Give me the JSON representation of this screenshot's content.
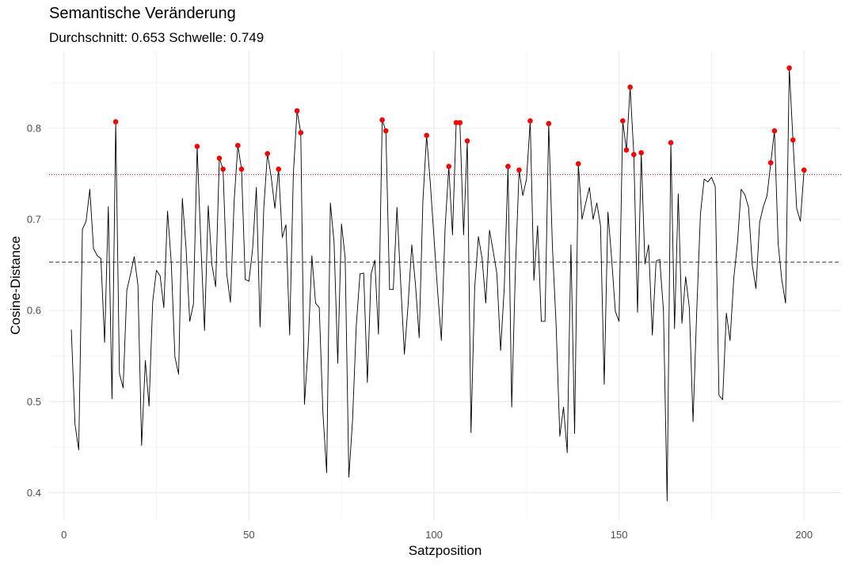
{
  "chart_data": {
    "type": "line",
    "title": "Semantische Veränderung",
    "subtitle": "Durchschnitt: 0.653  Schwelle: 0.749",
    "xlabel": "Satzposition",
    "ylabel": "Cosine-Distance",
    "xlim": [
      -4,
      210
    ],
    "ylim": [
      0.37,
      0.885
    ],
    "x_ticks": [
      0,
      50,
      100,
      150,
      200
    ],
    "y_ticks": [
      0.4,
      0.5,
      0.6,
      0.7,
      0.8
    ],
    "grid": true,
    "mean": 0.653,
    "threshold": 0.749,
    "line_color": "#000000",
    "point_color": "#ff0000",
    "mean_line_color": "#333333",
    "threshold_line_color": "#b22222",
    "x": [
      2,
      3,
      4,
      5,
      6,
      7,
      8,
      9,
      10,
      11,
      12,
      13,
      14,
      15,
      16,
      17,
      18,
      19,
      20,
      21,
      22,
      23,
      24,
      25,
      26,
      27,
      28,
      29,
      30,
      31,
      32,
      33,
      34,
      35,
      36,
      37,
      38,
      39,
      40,
      41,
      42,
      43,
      44,
      45,
      46,
      47,
      48,
      49,
      50,
      51,
      52,
      53,
      54,
      55,
      56,
      57,
      58,
      59,
      60,
      61,
      62,
      63,
      64,
      65,
      66,
      67,
      68,
      69,
      70,
      71,
      72,
      73,
      74,
      75,
      76,
      77,
      78,
      79,
      80,
      81,
      82,
      83,
      84,
      85,
      86,
      87,
      88,
      89,
      90,
      91,
      92,
      93,
      94,
      95,
      96,
      97,
      98,
      99,
      100,
      101,
      102,
      103,
      104,
      105,
      106,
      107,
      108,
      109,
      110,
      111,
      112,
      113,
      114,
      115,
      116,
      117,
      118,
      119,
      120,
      121,
      122,
      123,
      124,
      125,
      126,
      127,
      128,
      129,
      130,
      131,
      132,
      133,
      134,
      135,
      136,
      137,
      138,
      139,
      140,
      141,
      142,
      143,
      144,
      145,
      146,
      147,
      148,
      149,
      150,
      151,
      152,
      153,
      154,
      155,
      156,
      157,
      158,
      159,
      160,
      161,
      162,
      163,
      164,
      165,
      166,
      167,
      168,
      169,
      170,
      171,
      172,
      173,
      174,
      175,
      176,
      177,
      178,
      179,
      180,
      181,
      182,
      183,
      184,
      185,
      186,
      187,
      188,
      189,
      190,
      191,
      192,
      193,
      194,
      195,
      196,
      197,
      198,
      199,
      200
    ],
    "y": [
      0.579,
      0.475,
      0.447,
      0.689,
      0.698,
      0.733,
      0.668,
      0.66,
      0.657,
      0.565,
      0.714,
      0.503,
      0.807,
      0.531,
      0.515,
      0.622,
      0.64,
      0.659,
      0.628,
      0.452,
      0.545,
      0.495,
      0.61,
      0.644,
      0.638,
      0.603,
      0.709,
      0.653,
      0.549,
      0.53,
      0.723,
      0.669,
      0.588,
      0.607,
      0.78,
      0.674,
      0.578,
      0.715,
      0.65,
      0.626,
      0.767,
      0.755,
      0.64,
      0.609,
      0.72,
      0.781,
      0.755,
      0.634,
      0.632,
      0.668,
      0.735,
      0.582,
      0.712,
      0.772,
      0.747,
      0.712,
      0.755,
      0.68,
      0.694,
      0.573,
      0.75,
      0.819,
      0.795,
      0.497,
      0.56,
      0.66,
      0.608,
      0.603,
      0.487,
      0.422,
      0.718,
      0.675,
      0.542,
      0.695,
      0.658,
      0.417,
      0.48,
      0.583,
      0.64,
      0.641,
      0.521,
      0.64,
      0.655,
      0.574,
      0.809,
      0.797,
      0.623,
      0.623,
      0.713,
      0.63,
      0.552,
      0.606,
      0.672,
      0.628,
      0.57,
      0.72,
      0.792,
      0.74,
      0.68,
      0.62,
      0.567,
      0.69,
      0.758,
      0.683,
      0.806,
      0.806,
      0.683,
      0.786,
      0.466,
      0.625,
      0.681,
      0.657,
      0.608,
      0.688,
      0.665,
      0.64,
      0.556,
      0.626,
      0.758,
      0.494,
      0.645,
      0.754,
      0.726,
      0.744,
      0.808,
      0.633,
      0.693,
      0.588,
      0.588,
      0.805,
      0.67,
      0.584,
      0.462,
      0.494,
      0.444,
      0.672,
      0.465,
      0.761,
      0.7,
      0.718,
      0.735,
      0.7,
      0.718,
      0.693,
      0.519,
      0.708,
      0.657,
      0.599,
      0.588,
      0.808,
      0.776,
      0.845,
      0.771,
      0.598,
      0.773,
      0.651,
      0.672,
      0.573,
      0.654,
      0.656,
      0.6,
      0.391,
      0.784,
      0.58,
      0.728,
      0.586,
      0.637,
      0.603,
      0.478,
      0.6,
      0.706,
      0.744,
      0.741,
      0.746,
      0.736,
      0.507,
      0.502,
      0.597,
      0.567,
      0.635,
      0.674,
      0.733,
      0.727,
      0.713,
      0.65,
      0.624,
      0.697,
      0.714,
      0.726,
      0.762,
      0.797,
      0.673,
      0.633,
      0.608,
      0.866,
      0.787,
      0.712,
      0.698,
      0.754
    ],
    "highlighted_points": {
      "x": [
        14,
        36,
        42,
        43,
        47,
        48,
        55,
        58,
        63,
        64,
        86,
        87,
        98,
        104,
        106,
        107,
        109,
        120,
        123,
        126,
        131,
        139,
        151,
        152,
        153,
        154,
        156,
        164,
        191,
        192,
        196,
        197,
        200
      ],
      "y": [
        0.807,
        0.78,
        0.767,
        0.755,
        0.781,
        0.755,
        0.772,
        0.755,
        0.819,
        0.795,
        0.809,
        0.797,
        0.792,
        0.758,
        0.806,
        0.806,
        0.786,
        0.758,
        0.754,
        0.808,
        0.805,
        0.761,
        0.808,
        0.776,
        0.845,
        0.771,
        0.773,
        0.784,
        0.762,
        0.797,
        0.866,
        0.787,
        0.754
      ]
    }
  }
}
